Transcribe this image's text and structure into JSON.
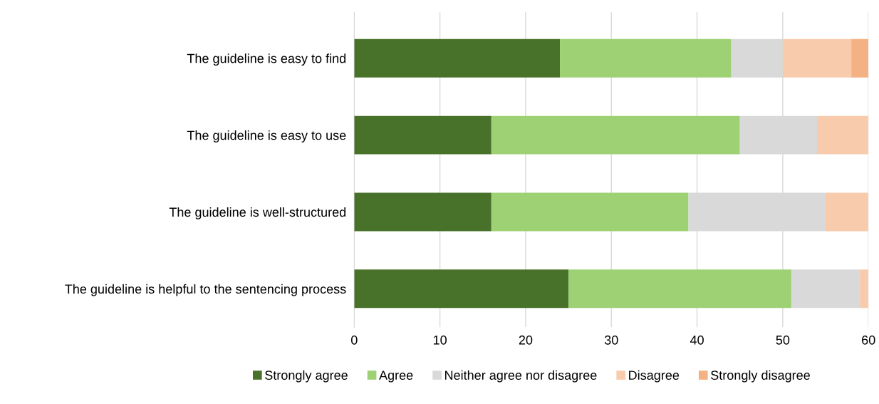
{
  "chart_data": {
    "type": "bar",
    "orientation": "horizontal",
    "stacked": true,
    "categories": [
      "The guideline is easy to find",
      "The guideline is easy to use",
      "The guideline is well-structured",
      "The guideline is helpful to the sentencing process"
    ],
    "series": [
      {
        "name": "Strongly agree",
        "color": "#48722a",
        "values": [
          24,
          16,
          16,
          25
        ]
      },
      {
        "name": "Agree",
        "color": "#9dd174",
        "values": [
          20,
          29,
          23,
          26
        ]
      },
      {
        "name": "Neither agree nor disagree",
        "color": "#d9d9d9",
        "values": [
          6,
          9,
          16,
          8
        ]
      },
      {
        "name": "Disagree",
        "color": "#f8cbad",
        "values": [
          8,
          6,
          5,
          1
        ]
      },
      {
        "name": "Strongly disagree",
        "color": "#f4b183",
        "values": [
          2,
          0,
          0,
          0
        ]
      }
    ],
    "xlim": [
      0,
      60
    ],
    "xticks": [
      0,
      10,
      20,
      30,
      40,
      50,
      60
    ],
    "grid": "x",
    "legend": "bottom"
  }
}
